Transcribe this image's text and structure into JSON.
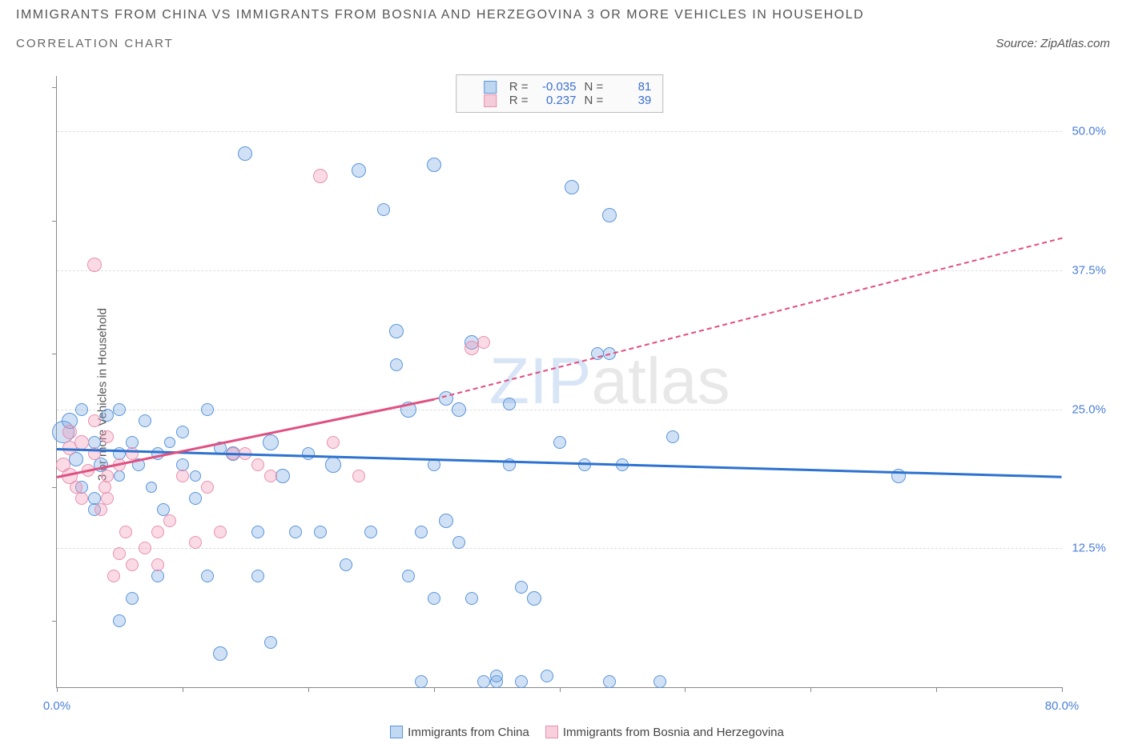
{
  "title": "IMMIGRANTS FROM CHINA VS IMMIGRANTS FROM BOSNIA AND HERZEGOVINA 3 OR MORE VEHICLES IN HOUSEHOLD",
  "subtitle": "CORRELATION CHART",
  "source": "Source: ZipAtlas.com",
  "y_axis_label": "3 or more Vehicles in Household",
  "watermark": {
    "prefix": "ZIP",
    "suffix": "atlas"
  },
  "chart": {
    "type": "scatter",
    "xlim": [
      0,
      80
    ],
    "ylim": [
      0,
      55
    ],
    "x_ticks": [
      0,
      10,
      20,
      30,
      40,
      50,
      60,
      70,
      80
    ],
    "x_tick_labels": {
      "0": "0.0%",
      "80": "80.0%"
    },
    "y_ticks": [
      12.5,
      25.0,
      37.5,
      50.0
    ],
    "y_tick_labels": [
      "12.5%",
      "25.0%",
      "37.5%",
      "50.0%"
    ],
    "y_tick_marks": [
      6,
      18,
      30,
      42,
      54
    ],
    "background_color": "#ffffff",
    "grid_color": "#dddddd",
    "axis_color": "#888888"
  },
  "series": [
    {
      "name": "Immigrants from China",
      "color_fill": "rgba(120,170,230,0.35)",
      "color_stroke": "#5a95d8",
      "trend_color": "#2d72d0",
      "trend": {
        "x1": 0,
        "y1": 21.5,
        "x2": 80,
        "y2": 19,
        "dashed": false
      },
      "R": "-0.035",
      "N": "81",
      "points": [
        [
          0.5,
          23,
          14
        ],
        [
          1,
          24,
          10
        ],
        [
          1.5,
          20.5,
          9
        ],
        [
          2,
          18,
          8
        ],
        [
          2,
          25,
          8
        ],
        [
          3,
          22,
          8
        ],
        [
          3,
          16,
          8
        ],
        [
          3.5,
          20,
          9
        ],
        [
          4,
          24.5,
          8
        ],
        [
          5,
          21,
          8
        ],
        [
          5,
          19,
          7
        ],
        [
          5,
          25,
          8
        ],
        [
          6,
          22,
          8
        ],
        [
          6.5,
          20,
          8
        ],
        [
          7,
          24,
          8
        ],
        [
          7.5,
          18,
          7
        ],
        [
          8,
          21,
          8
        ],
        [
          8.5,
          16,
          8
        ],
        [
          9,
          22,
          7
        ],
        [
          10,
          20,
          8
        ],
        [
          10,
          23,
          8
        ],
        [
          11,
          19,
          7
        ],
        [
          12,
          25,
          8
        ],
        [
          13,
          21.5,
          8
        ],
        [
          14,
          21,
          9
        ],
        [
          13,
          3,
          9
        ],
        [
          15,
          48,
          9
        ],
        [
          16,
          10,
          8
        ],
        [
          17,
          22,
          10
        ],
        [
          16,
          14,
          8
        ],
        [
          12,
          10,
          8
        ],
        [
          11,
          17,
          8
        ],
        [
          3,
          17,
          8
        ],
        [
          18,
          19,
          9
        ],
        [
          19,
          14,
          8
        ],
        [
          20,
          21,
          8
        ],
        [
          21,
          14,
          8
        ],
        [
          22,
          20,
          10
        ],
        [
          23,
          11,
          8
        ],
        [
          24,
          46.5,
          9
        ],
        [
          25,
          14,
          8
        ],
        [
          26,
          43,
          8
        ],
        [
          27,
          32,
          9
        ],
        [
          28,
          25,
          10
        ],
        [
          27,
          29,
          8
        ],
        [
          28,
          10,
          8
        ],
        [
          29,
          0.5,
          8
        ],
        [
          30,
          20,
          8
        ],
        [
          31,
          15,
          9
        ],
        [
          30,
          8,
          8
        ],
        [
          32,
          25,
          9
        ],
        [
          33,
          31,
          9
        ],
        [
          34,
          0.5,
          8
        ],
        [
          33,
          8,
          8
        ],
        [
          35,
          0.5,
          8
        ],
        [
          36,
          20,
          8
        ],
        [
          37,
          0.5,
          8
        ],
        [
          30,
          47,
          9
        ],
        [
          38,
          8,
          9
        ],
        [
          39,
          1,
          8
        ],
        [
          40,
          22,
          8
        ],
        [
          35,
          1,
          8
        ],
        [
          31,
          26,
          9
        ],
        [
          32,
          13,
          8
        ],
        [
          41,
          45,
          9
        ],
        [
          42,
          20,
          8
        ],
        [
          44,
          0.5,
          8
        ],
        [
          45,
          20,
          8
        ],
        [
          44,
          30,
          8
        ],
        [
          43,
          30,
          8
        ],
        [
          48,
          0.5,
          8
        ],
        [
          49,
          22.5,
          8
        ],
        [
          44,
          42.5,
          9
        ],
        [
          36,
          25.5,
          8
        ],
        [
          37,
          9,
          8
        ],
        [
          29,
          14,
          8
        ],
        [
          17,
          4,
          8
        ],
        [
          67,
          19,
          9
        ],
        [
          5,
          6,
          8
        ],
        [
          6,
          8,
          8
        ],
        [
          8,
          10,
          8
        ]
      ]
    },
    {
      "name": "Immigrants from Bosnia and Herzegovina",
      "color_fill": "rgba(240,150,180,0.35)",
      "color_stroke": "#e890b0",
      "trend_color": "#e05080",
      "trend_solid": {
        "x1": 0,
        "y1": 19,
        "x2": 30,
        "y2": 26,
        "dashed": false
      },
      "trend_dashed": {
        "x1": 30,
        "y1": 26,
        "x2": 80,
        "y2": 40.5,
        "dashed": true
      },
      "R": "0.237",
      "N": "39",
      "points": [
        [
          0.5,
          20,
          9
        ],
        [
          1,
          19,
          10
        ],
        [
          1,
          21.5,
          9
        ],
        [
          1.5,
          18,
          8
        ],
        [
          2,
          22,
          9
        ],
        [
          1,
          23,
          9
        ],
        [
          2.5,
          19.5,
          8
        ],
        [
          2,
          17,
          8
        ],
        [
          3,
          24,
          8
        ],
        [
          3,
          21,
          8
        ],
        [
          3.5,
          16,
          8
        ],
        [
          4,
          22.5,
          8
        ],
        [
          3.8,
          18,
          8
        ],
        [
          4.5,
          10,
          8
        ],
        [
          5,
          12,
          8
        ],
        [
          5.5,
          14,
          8
        ],
        [
          3,
          38,
          9
        ],
        [
          4,
          17,
          8
        ],
        [
          6,
          11,
          8
        ],
        [
          7,
          12.5,
          8
        ],
        [
          8,
          11,
          8
        ],
        [
          9,
          15,
          8
        ],
        [
          10,
          19,
          8
        ],
        [
          11,
          13,
          8
        ],
        [
          12,
          18,
          8
        ],
        [
          13,
          14,
          8
        ],
        [
          14,
          21,
          8
        ],
        [
          21,
          46,
          9
        ],
        [
          22,
          22,
          8
        ],
        [
          24,
          19,
          8
        ],
        [
          16,
          20,
          8
        ],
        [
          15,
          21,
          8
        ],
        [
          17,
          19,
          8
        ],
        [
          4,
          19,
          8
        ],
        [
          5,
          20,
          8
        ],
        [
          6,
          21,
          8
        ],
        [
          8,
          14,
          8
        ],
        [
          33,
          30.5,
          9
        ],
        [
          34,
          31,
          8
        ]
      ]
    }
  ],
  "legend": {
    "items": [
      {
        "label": "Immigrants from China",
        "fill": "rgba(120,170,230,0.45)",
        "stroke": "#5a95d8"
      },
      {
        "label": "Immigrants from Bosnia and Herzegovina",
        "fill": "rgba(240,150,180,0.45)",
        "stroke": "#e890b0"
      }
    ]
  },
  "stat_box": {
    "rows": [
      {
        "swatch_fill": "rgba(120,170,230,0.45)",
        "swatch_stroke": "#5a95d8",
        "R_label": "R =",
        "R": "-0.035",
        "N_label": "N =",
        "N": "81"
      },
      {
        "swatch_fill": "rgba(240,150,180,0.45)",
        "swatch_stroke": "#e890b0",
        "R_label": "R =",
        "R": "0.237",
        "N_label": "N =",
        "N": "39"
      }
    ]
  }
}
